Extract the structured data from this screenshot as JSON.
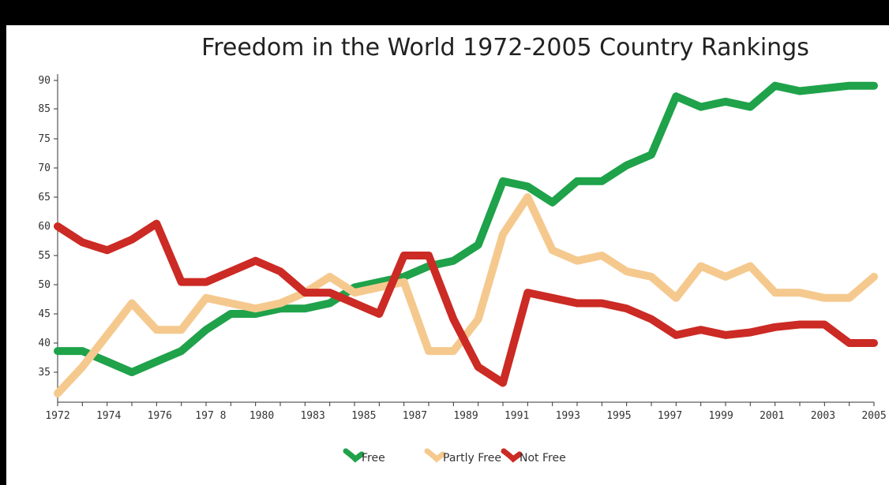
{
  "chart_data": {
    "type": "line",
    "title": "Freedom in the World 1972-2005 Country Rankings",
    "y_tick_labels": [
      "90",
      "85",
      "75",
      "70",
      "65",
      "60",
      "55",
      "50",
      "45",
      "40",
      "35"
    ],
    "x_tick_labels": [
      "1972",
      "1974",
      "1976",
      "197 8",
      "1980",
      "1983",
      "1985",
      "1987",
      "1989",
      "1991",
      "1993",
      "1995",
      "1997",
      "1999",
      "2001",
      "2003",
      "2005"
    ],
    "x": [
      1972,
      1973,
      1974,
      1975,
      1976,
      1977,
      1978,
      1979,
      1980,
      1981,
      1982,
      1983,
      1984,
      1985,
      1986,
      1987,
      1988,
      1989,
      1990,
      1991,
      1992,
      1993,
      1994,
      1995,
      1996,
      1997,
      1998,
      1999,
      2000,
      2001,
      2002,
      2003,
      2004,
      2005
    ],
    "series": [
      {
        "name": "Free",
        "color": "#1fa24a",
        "values": [
          39,
          39,
          37,
          35,
          37,
          39,
          43,
          46,
          46,
          47,
          47,
          48,
          51,
          52,
          53,
          55,
          56,
          59,
          71,
          70,
          67,
          71,
          71,
          74,
          76,
          87,
          85,
          86,
          85,
          89,
          88,
          88.5,
          89,
          89
        ]
      },
      {
        "name": "Partly Free",
        "color": "#f5c98e",
        "values": [
          31,
          36,
          42,
          48,
          43,
          43,
          49,
          48,
          47,
          48,
          50,
          53,
          50,
          51,
          52,
          39,
          39,
          45,
          61,
          68,
          58,
          56,
          57,
          54,
          53,
          49,
          55,
          53,
          55,
          50,
          50,
          49,
          49,
          53
        ]
      },
      {
        "name": "Not Free",
        "color": "#cc2a24",
        "values": [
          62.5,
          59.5,
          58,
          60,
          63,
          52,
          52,
          54,
          56,
          54,
          50,
          50,
          48,
          46,
          57,
          57,
          45,
          36,
          33,
          50,
          49,
          48,
          48,
          47,
          45,
          42,
          43,
          42,
          42.5,
          43.5,
          44,
          44,
          40.5,
          40.5
        ]
      }
    ],
    "ylim": [
      30,
      90
    ],
    "xlim": [
      1972,
      2005
    ],
    "grid": false,
    "legend_position": "bottom-center"
  }
}
